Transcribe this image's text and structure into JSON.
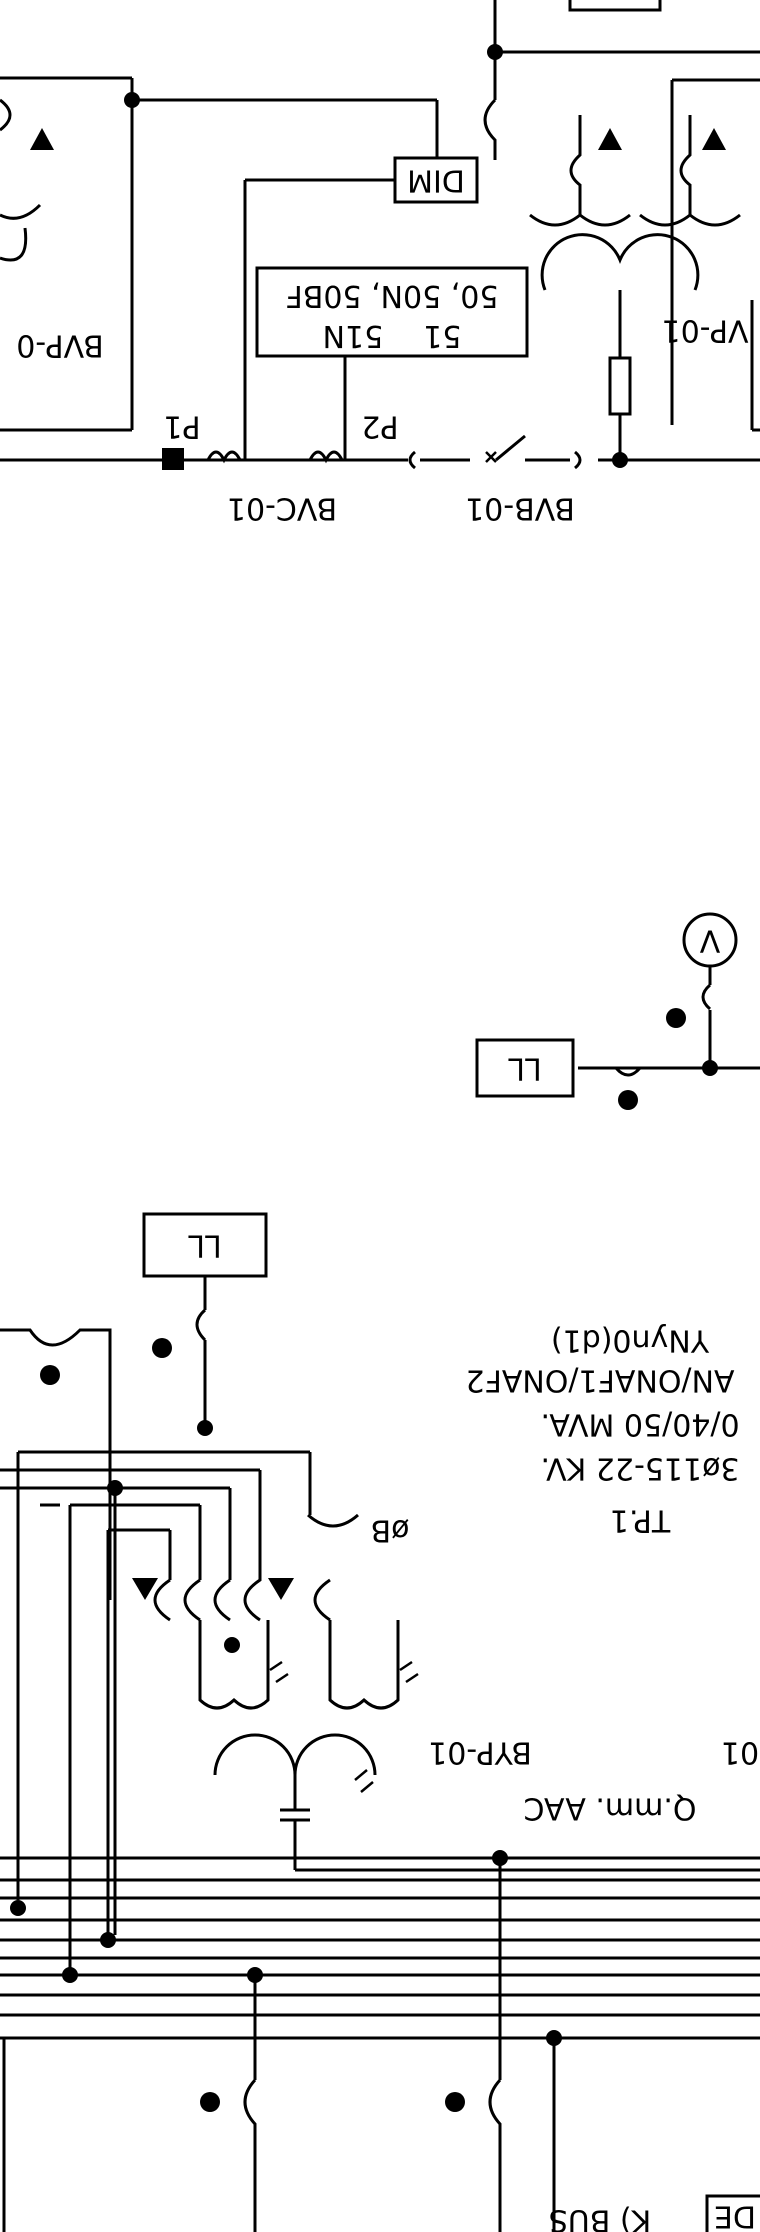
{
  "diagram": {
    "labels": {
      "dim": "DIM",
      "relay_line1_a": "51",
      "relay_line1_b": "51N",
      "relay_line2": "50, 50N, 50BF",
      "p1": "P1",
      "p2": "P2",
      "bvc": "BVC-01",
      "bvb": "BVB-01",
      "bvp_top_left": "BVP-0",
      "bvp_top_right": "VP-01",
      "bvp_bottom": "BYP-01",
      "meter_v": "V",
      "ll_upper": "LL",
      "ll_lower": "LL",
      "phase_b": "øB",
      "tp_title": "TP.1",
      "tp_voltage": "3ø115-22 KV.",
      "tp_rating": "0/40/50 MVA.",
      "tp_cooling": "AN/ONAF1/ONAF2",
      "tp_vector": "YNyn0(d1)",
      "cable": "Q.mm. AAC",
      "cable_suffix": "01",
      "bus_label": "K) BUS",
      "de_box": "DE"
    }
  }
}
